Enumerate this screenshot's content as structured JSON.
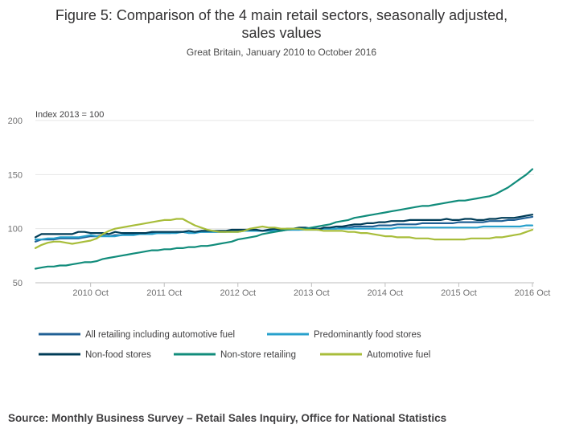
{
  "title_line1": "Figure 5: Comparison of the 4 main retail sectors, seasonally adjusted,",
  "title_line2": "sales values",
  "subtitle": "Great Britain, January 2010 to October 2016",
  "source": "Source: Monthly Business Survey – Retail Sales Inquiry, Office for National Statistics",
  "chart_data": {
    "type": "line",
    "title": "Figure 5: Comparison of the 4 main retail sectors, seasonally adjusted, sales values",
    "ylabel": "Index 2013 = 100",
    "ylim": [
      50,
      200
    ],
    "yticks": [
      50,
      100,
      150,
      200
    ],
    "xlim": [
      0,
      81
    ],
    "xticks": [
      {
        "x": 9,
        "label": "2010 Oct"
      },
      {
        "x": 21,
        "label": "2011 Oct"
      },
      {
        "x": 33,
        "label": "2012 Oct"
      },
      {
        "x": 45,
        "label": "2013 Oct"
      },
      {
        "x": 57,
        "label": "2014 Oct"
      },
      {
        "x": 69,
        "label": "2015 Oct"
      },
      {
        "x": 81,
        "label": "2016 Oct"
      }
    ],
    "grid": true,
    "legend_position": "bottom",
    "series": [
      {
        "name": "All retailing including automotive fuel",
        "color": "#206095",
        "values": [
          88,
          90,
          90,
          90,
          91,
          91,
          91,
          91,
          92,
          93,
          93,
          94,
          93,
          94,
          94,
          95,
          95,
          95,
          95,
          96,
          96,
          96,
          96,
          97,
          97,
          96,
          97,
          97,
          97,
          97,
          97,
          97,
          98,
          98,
          98,
          98,
          98,
          98,
          99,
          99,
          99,
          99,
          99,
          99,
          100,
          100,
          100,
          100,
          100,
          100,
          101,
          101,
          102,
          102,
          102,
          102,
          103,
          103,
          103,
          104,
          104,
          104,
          104,
          105,
          105,
          105,
          105,
          105,
          105,
          106,
          106,
          106,
          106,
          106,
          107,
          107,
          107,
          108,
          108,
          109,
          110,
          111
        ]
      },
      {
        "name": "Predominantly food stores",
        "color": "#27a0cc",
        "values": [
          90,
          90,
          91,
          91,
          92,
          92,
          92,
          92,
          93,
          94,
          93,
          93,
          93,
          93,
          94,
          94,
          94,
          95,
          95,
          95,
          96,
          96,
          96,
          96,
          97,
          96,
          96,
          97,
          97,
          97,
          97,
          97,
          97,
          97,
          98,
          98,
          98,
          98,
          98,
          98,
          98,
          99,
          99,
          99,
          99,
          99,
          99,
          100,
          100,
          100,
          100,
          100,
          100,
          100,
          100,
          100,
          100,
          100,
          100,
          101,
          101,
          101,
          101,
          101,
          101,
          101,
          101,
          101,
          101,
          101,
          101,
          101,
          101,
          102,
          102,
          102,
          102,
          102,
          102,
          102,
          103,
          103
        ]
      },
      {
        "name": "Non-food stores",
        "color": "#003c57",
        "values": [
          92,
          95,
          95,
          95,
          95,
          95,
          95,
          97,
          97,
          96,
          96,
          96,
          95,
          97,
          96,
          96,
          96,
          96,
          96,
          97,
          97,
          97,
          97,
          97,
          97,
          98,
          97,
          98,
          98,
          98,
          98,
          98,
          99,
          99,
          99,
          99,
          99,
          98,
          99,
          100,
          99,
          100,
          100,
          101,
          101,
          100,
          99,
          101,
          101,
          102,
          102,
          103,
          104,
          104,
          105,
          105,
          106,
          106,
          107,
          107,
          107,
          108,
          108,
          108,
          108,
          108,
          108,
          109,
          108,
          108,
          109,
          109,
          108,
          108,
          109,
          109,
          110,
          110,
          110,
          111,
          112,
          113
        ]
      },
      {
        "name": "Non-store retailing",
        "color": "#118c7b",
        "values": [
          63,
          64,
          65,
          65,
          66,
          66,
          67,
          68,
          69,
          69,
          70,
          72,
          73,
          74,
          75,
          76,
          77,
          78,
          79,
          80,
          80,
          81,
          81,
          82,
          82,
          83,
          83,
          84,
          84,
          85,
          86,
          87,
          88,
          90,
          91,
          92,
          93,
          95,
          96,
          97,
          98,
          99,
          100,
          100,
          100,
          101,
          102,
          103,
          104,
          106,
          107,
          108,
          110,
          111,
          112,
          113,
          114,
          115,
          116,
          117,
          118,
          119,
          120,
          121,
          121,
          122,
          123,
          124,
          125,
          126,
          126,
          127,
          128,
          129,
          130,
          132,
          135,
          138,
          142,
          146,
          150,
          155
        ]
      },
      {
        "name": "Automotive fuel",
        "color": "#a8bd3a",
        "values": [
          82,
          85,
          87,
          88,
          88,
          87,
          86,
          87,
          88,
          89,
          91,
          95,
          98,
          100,
          101,
          102,
          103,
          104,
          105,
          106,
          107,
          108,
          108,
          109,
          109,
          106,
          103,
          101,
          99,
          98,
          97,
          97,
          97,
          97,
          98,
          100,
          101,
          102,
          101,
          101,
          100,
          100,
          100,
          100,
          99,
          99,
          99,
          98,
          98,
          98,
          98,
          97,
          97,
          96,
          96,
          95,
          94,
          93,
          93,
          92,
          92,
          92,
          91,
          91,
          91,
          90,
          90,
          90,
          90,
          90,
          90,
          91,
          91,
          91,
          91,
          92,
          92,
          93,
          94,
          95,
          97,
          99
        ]
      }
    ]
  }
}
